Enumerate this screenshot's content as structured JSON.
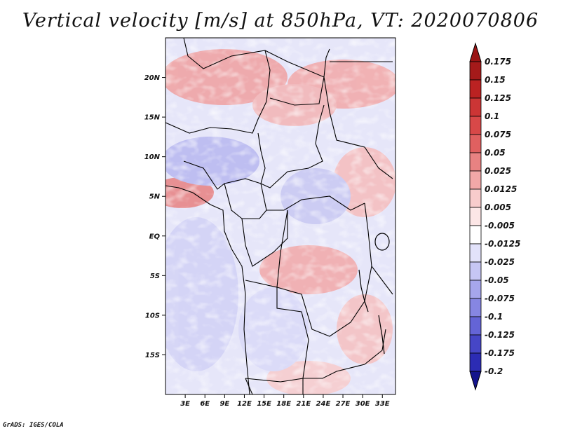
{
  "title": "Vertical velocity [m/s] at 850hPa, VT: 2020070806",
  "footer": "GrADS: IGES/COLA",
  "map": {
    "lon_range": [
      0,
      35
    ],
    "lat_range": [
      -20,
      25
    ],
    "lat_ticks": [
      {
        "value": 20,
        "label": "20N"
      },
      {
        "value": 15,
        "label": "15N"
      },
      {
        "value": 10,
        "label": "10N"
      },
      {
        "value": 5,
        "label": "5N"
      },
      {
        "value": 0,
        "label": "EQ"
      },
      {
        "value": -5,
        "label": "5S"
      },
      {
        "value": -10,
        "label": "10S"
      },
      {
        "value": -15,
        "label": "15S"
      }
    ],
    "lon_ticks": [
      {
        "value": 3,
        "label": "3E"
      },
      {
        "value": 6,
        "label": "6E"
      },
      {
        "value": 9,
        "label": "9E"
      },
      {
        "value": 12,
        "label": "12E"
      },
      {
        "value": 15,
        "label": "15E"
      },
      {
        "value": 18,
        "label": "18E"
      },
      {
        "value": 21,
        "label": "21E"
      },
      {
        "value": 24,
        "label": "24E"
      },
      {
        "value": 27,
        "label": "27E"
      },
      {
        "value": 30,
        "label": "30E"
      },
      {
        "value": 33,
        "label": "33E"
      }
    ]
  },
  "colorbar": {
    "levels": [
      {
        "label": "0.175",
        "color": "#a51a1a"
      },
      {
        "label": "0.15",
        "color": "#bb2222"
      },
      {
        "label": "0.125",
        "color": "#cc3535"
      },
      {
        "label": "0.1",
        "color": "#d84848"
      },
      {
        "label": "0.075",
        "color": "#e06060"
      },
      {
        "label": "0.05",
        "color": "#e88282"
      },
      {
        "label": "0.025",
        "color": "#f2a8a8"
      },
      {
        "label": "0.0125",
        "color": "#f8cccc"
      },
      {
        "label": "0.005",
        "color": "#fce6e6"
      },
      {
        "label": "-0.005",
        "color": "#ffffff"
      },
      {
        "label": "-0.0125",
        "color": "#e2e2fa"
      },
      {
        "label": "-0.025",
        "color": "#c6c6f4"
      },
      {
        "label": "-0.05",
        "color": "#a6a6ec"
      },
      {
        "label": "-0.075",
        "color": "#8686e2"
      },
      {
        "label": "-0.1",
        "color": "#6464d6"
      },
      {
        "label": "-0.125",
        "color": "#4646c6"
      },
      {
        "label": "-0.175",
        "color": "#2c2cb4"
      },
      {
        "label": "-0.2",
        "color": "#1a1a9a"
      }
    ],
    "top_color": "#9a1414",
    "bottom_color": "#14148c"
  }
}
